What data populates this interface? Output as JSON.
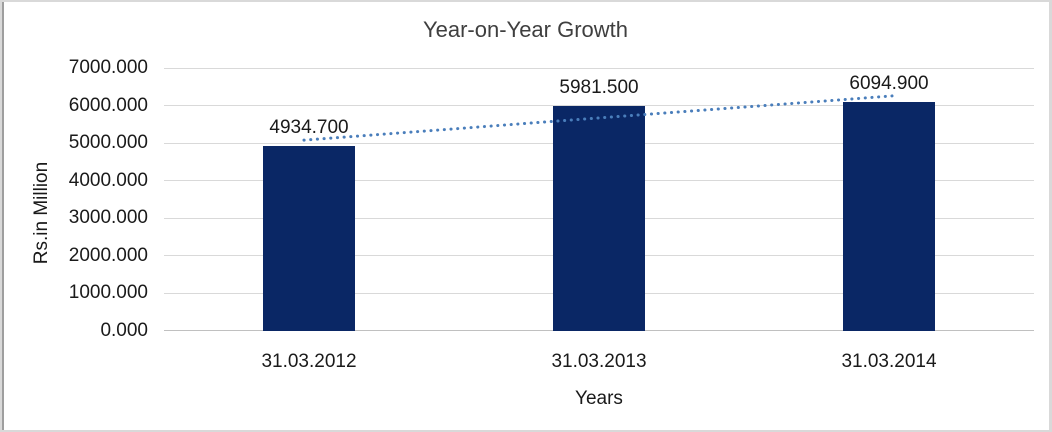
{
  "chart_data": {
    "type": "bar",
    "title": "Year-on-Year Growth",
    "xlabel": "Years",
    "ylabel": "Rs.in Million",
    "categories": [
      "31.03.2012",
      "31.03.2013",
      "31.03.2014"
    ],
    "values": [
      4934.7,
      5981.5,
      6094.9
    ],
    "value_labels": [
      "4934.700",
      "5981.500",
      "6094.900"
    ],
    "ylim": [
      0,
      7000
    ],
    "ytick_step": 1000,
    "ytick_labels": [
      "0.000",
      "1000.000",
      "2000.000",
      "3000.000",
      "4000.000",
      "5000.000",
      "6000.000",
      "7000.000"
    ],
    "grid": true,
    "legend": false,
    "trendline": {
      "present": true,
      "style": "dotted",
      "fit": "linear"
    },
    "colors": {
      "bar": "#0a2765",
      "trendline": "#4a7ebb",
      "gridline": "#d9d9d9",
      "axis_line": "#c0c0c0",
      "text": "#1a1a1a",
      "title": "#3f3f3f",
      "frame_border": "#d9d9d9"
    }
  }
}
